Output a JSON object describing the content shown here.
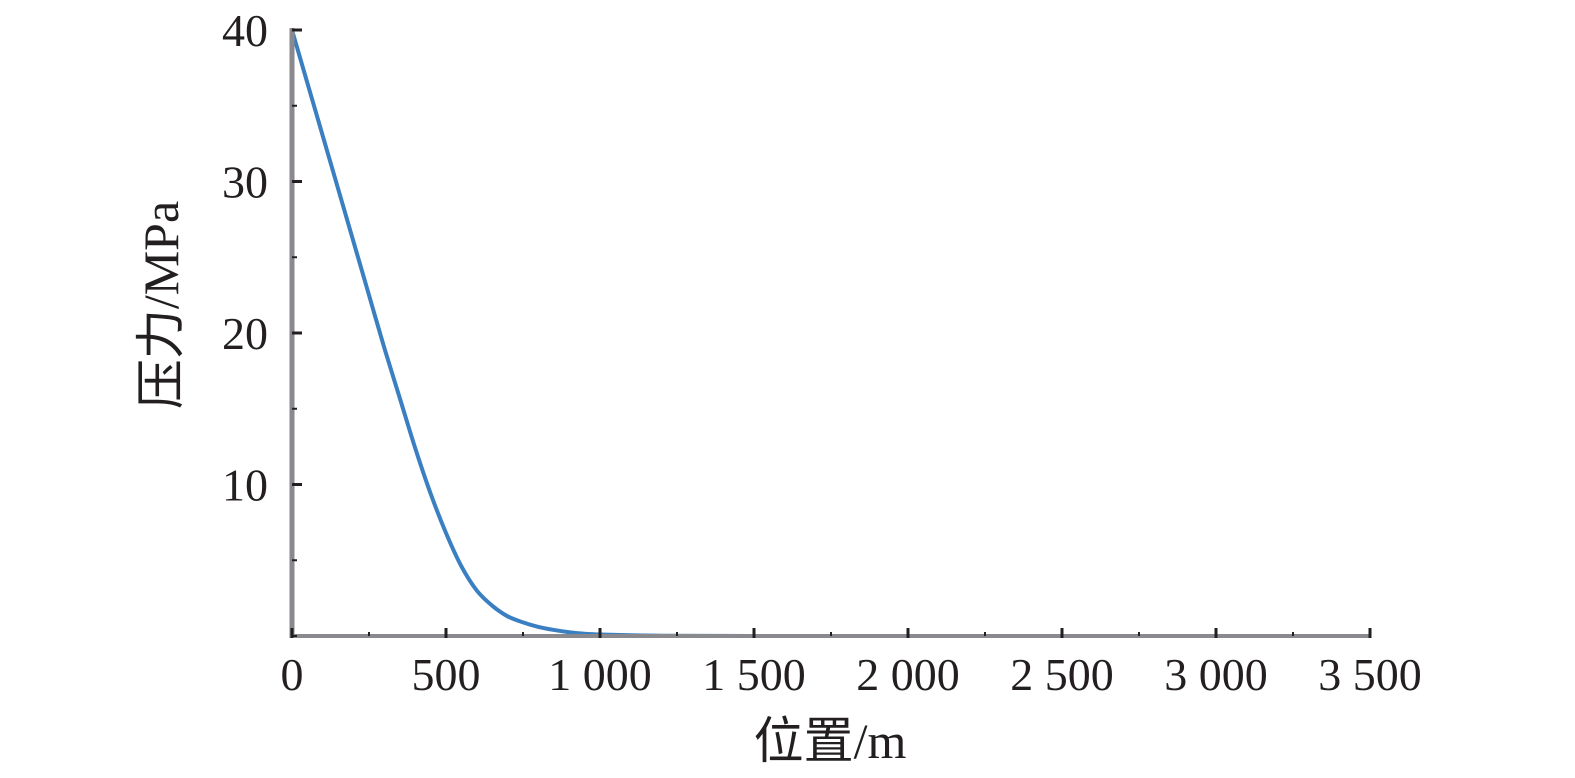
{
  "chart_data": {
    "type": "line",
    "title": "",
    "xlabel": "位置/m",
    "ylabel": "压力/MPa",
    "xlim": [
      0,
      3500
    ],
    "ylim": [
      0,
      40
    ],
    "x_ticks": [
      0,
      500,
      1000,
      1500,
      2000,
      2500,
      3000,
      3500
    ],
    "x_tick_labels": [
      "0",
      "500",
      "1 000",
      "1 500",
      "2 000",
      "2 500",
      "3 000",
      "3 500"
    ],
    "y_ticks": [
      10,
      20,
      30,
      40
    ],
    "y_tick_labels": [
      "10",
      "20",
      "30",
      "40"
    ],
    "grid": false,
    "legend": "none",
    "colors": {
      "series": "#3a7fc1",
      "axis": "#8a8a8e",
      "tick": "#231f20"
    },
    "series": [
      {
        "x": [
          0,
          50,
          100,
          150,
          200,
          250,
          300,
          350,
          400,
          450,
          500,
          550,
          600,
          650,
          700,
          750,
          800,
          850,
          900,
          950,
          1000,
          1100,
          1200,
          1500,
          2000,
          2500,
          3000
        ],
        "values": [
          40,
          36.5,
          33,
          29.5,
          26,
          22.5,
          19,
          15.7,
          12.4,
          9.4,
          6.8,
          4.6,
          3.0,
          2.0,
          1.3,
          0.9,
          0.6,
          0.4,
          0.25,
          0.15,
          0.1,
          0.05,
          0.02,
          0,
          0,
          0,
          0
        ]
      }
    ]
  }
}
